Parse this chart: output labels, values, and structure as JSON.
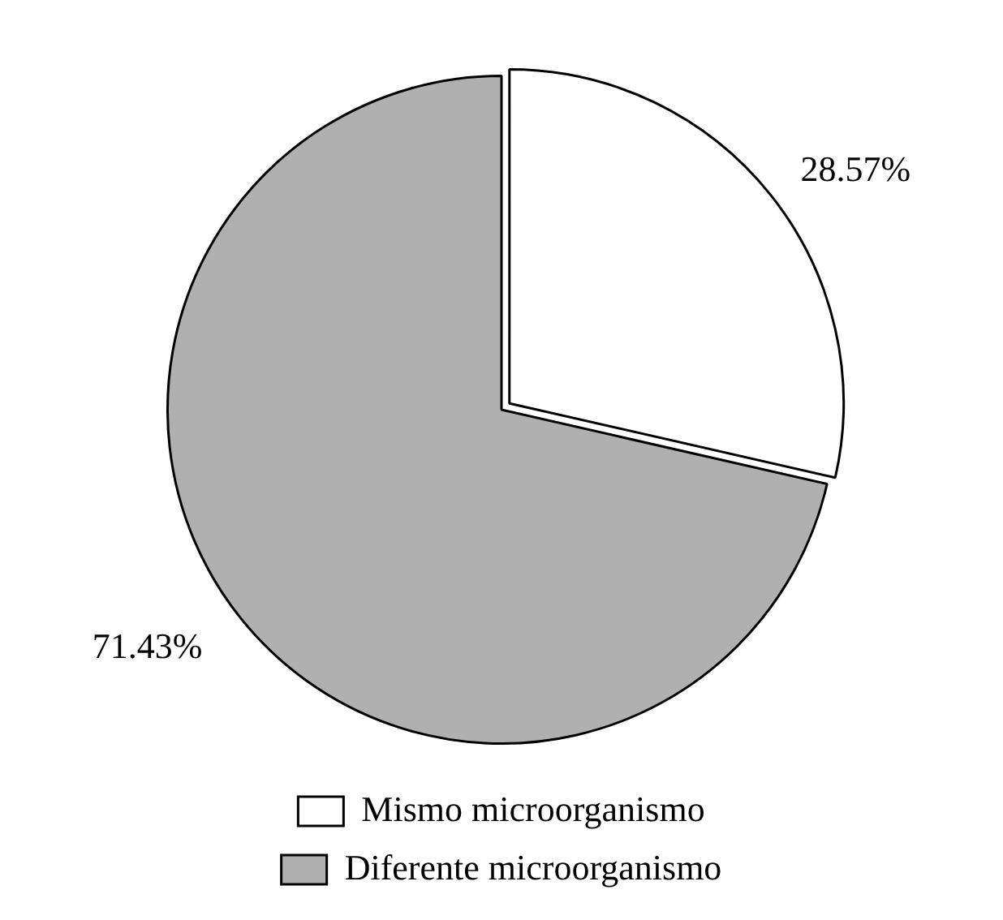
{
  "chart_data": {
    "type": "pie",
    "categories": [
      "Mismo microorganismo",
      "Diferente microorganismo"
    ],
    "values": [
      28.57,
      71.43
    ],
    "colors": [
      "#ffffff",
      "#b0b0b0"
    ],
    "value_labels": [
      "28.57%",
      "71.43%"
    ],
    "legend": "bottom"
  }
}
